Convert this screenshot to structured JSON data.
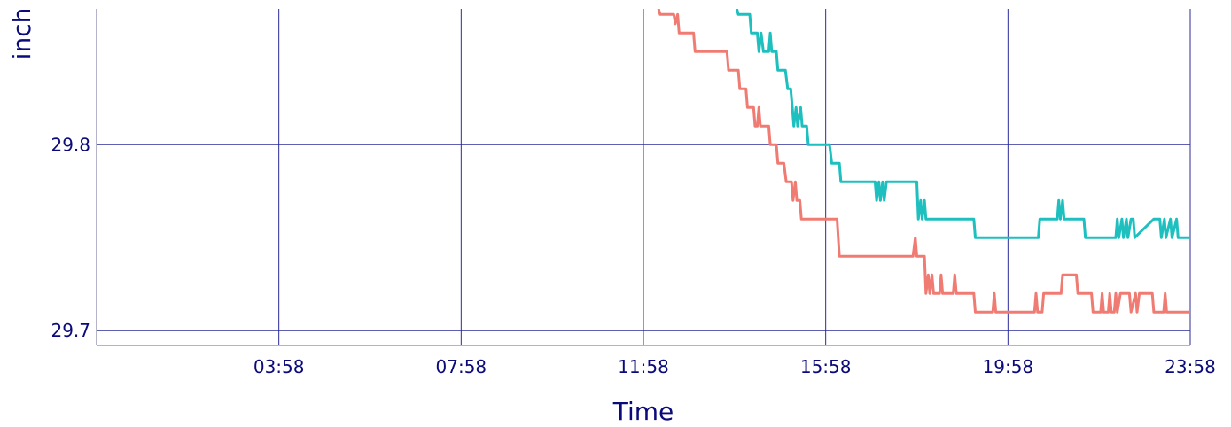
{
  "chart_data": {
    "type": "line",
    "title": "",
    "xlabel": "Time",
    "ylabel": "inch",
    "x_tick_labels": [
      "03:58",
      "07:58",
      "11:58",
      "15:58",
      "19:58",
      "23:58"
    ],
    "y_tick_labels": [
      "29.7",
      "29.8"
    ],
    "xlim": [
      "23:58",
      "23:58"
    ],
    "ylim": [
      29.692,
      29.873
    ],
    "grid": true,
    "legend": "none",
    "series": [
      {
        "color": "#f07b72",
        "points": [
          [
            "12:18",
            29.873
          ],
          [
            "12:20",
            29.87
          ],
          [
            "12:38",
            29.87
          ],
          [
            "12:40",
            29.865
          ],
          [
            "12:43",
            29.87
          ],
          [
            "12:45",
            29.86
          ],
          [
            "13:04",
            29.86
          ],
          [
            "13:06",
            29.85
          ],
          [
            "13:48",
            29.85
          ],
          [
            "13:50",
            29.84
          ],
          [
            "14:03",
            29.84
          ],
          [
            "14:05",
            29.83
          ],
          [
            "14:13",
            29.83
          ],
          [
            "14:15",
            29.82
          ],
          [
            "14:23",
            29.82
          ],
          [
            "14:25",
            29.81
          ],
          [
            "14:28",
            29.81
          ],
          [
            "14:30",
            29.82
          ],
          [
            "14:32",
            29.81
          ],
          [
            "14:43",
            29.81
          ],
          [
            "14:45",
            29.8
          ],
          [
            "14:53",
            29.8
          ],
          [
            "14:55",
            29.79
          ],
          [
            "15:03",
            29.79
          ],
          [
            "15:06",
            29.78
          ],
          [
            "15:13",
            29.78
          ],
          [
            "15:15",
            29.77
          ],
          [
            "15:18",
            29.78
          ],
          [
            "15:20",
            29.77
          ],
          [
            "15:24",
            29.77
          ],
          [
            "15:26",
            29.76
          ],
          [
            "15:58",
            29.76
          ],
          [
            "16:13",
            29.76
          ],
          [
            "16:16",
            29.74
          ],
          [
            "17:53",
            29.74
          ],
          [
            "17:56",
            29.75
          ],
          [
            "17:58",
            29.74
          ],
          [
            "18:08",
            29.74
          ],
          [
            "18:10",
            29.72
          ],
          [
            "18:13",
            29.73
          ],
          [
            "18:15",
            29.72
          ],
          [
            "18:18",
            29.73
          ],
          [
            "18:20",
            29.72
          ],
          [
            "18:28",
            29.72
          ],
          [
            "18:30",
            29.73
          ],
          [
            "18:32",
            29.72
          ],
          [
            "18:46",
            29.72
          ],
          [
            "18:48",
            29.73
          ],
          [
            "18:50",
            29.72
          ],
          [
            "19:13",
            29.72
          ],
          [
            "19:15",
            29.71
          ],
          [
            "19:38",
            29.71
          ],
          [
            "19:40",
            29.72
          ],
          [
            "19:42",
            29.71
          ],
          [
            "20:33",
            29.71
          ],
          [
            "20:35",
            29.72
          ],
          [
            "20:37",
            29.71
          ],
          [
            "20:43",
            29.71
          ],
          [
            "20:45",
            29.72
          ],
          [
            "21:08",
            29.72
          ],
          [
            "21:10",
            29.73
          ],
          [
            "21:28",
            29.73
          ],
          [
            "21:30",
            29.72
          ],
          [
            "21:48",
            29.72
          ],
          [
            "21:50",
            29.71
          ],
          [
            "22:00",
            29.71
          ],
          [
            "22:02",
            29.72
          ],
          [
            "22:04",
            29.71
          ],
          [
            "22:10",
            29.71
          ],
          [
            "22:12",
            29.72
          ],
          [
            "22:14",
            29.71
          ],
          [
            "22:18",
            29.71
          ],
          [
            "22:20",
            29.72
          ],
          [
            "22:22",
            29.71
          ],
          [
            "22:26",
            29.72
          ],
          [
            "22:38",
            29.72
          ],
          [
            "22:40",
            29.71
          ],
          [
            "22:46",
            29.72
          ],
          [
            "22:48",
            29.71
          ],
          [
            "22:51",
            29.72
          ],
          [
            "23:08",
            29.72
          ],
          [
            "23:10",
            29.71
          ],
          [
            "23:23",
            29.71
          ],
          [
            "23:25",
            29.72
          ],
          [
            "23:27",
            29.71
          ],
          [
            "23:58",
            29.71
          ]
        ]
      },
      {
        "color": "#1dbfbf",
        "points": [
          [
            "14:01",
            29.873
          ],
          [
            "14:03",
            29.87
          ],
          [
            "14:18",
            29.87
          ],
          [
            "14:20",
            29.86
          ],
          [
            "14:28",
            29.86
          ],
          [
            "14:30",
            29.85
          ],
          [
            "14:33",
            29.86
          ],
          [
            "14:36",
            29.85
          ],
          [
            "14:43",
            29.85
          ],
          [
            "14:45",
            29.86
          ],
          [
            "14:47",
            29.85
          ],
          [
            "14:53",
            29.85
          ],
          [
            "14:55",
            29.84
          ],
          [
            "15:05",
            29.84
          ],
          [
            "15:08",
            29.83
          ],
          [
            "15:12",
            29.83
          ],
          [
            "15:14",
            29.82
          ],
          [
            "15:16",
            29.81
          ],
          [
            "15:19",
            29.82
          ],
          [
            "15:21",
            29.81
          ],
          [
            "15:25",
            29.82
          ],
          [
            "15:27",
            29.81
          ],
          [
            "15:33",
            29.81
          ],
          [
            "15:35",
            29.8
          ],
          [
            "16:03",
            29.8
          ],
          [
            "16:06",
            29.79
          ],
          [
            "16:16",
            29.79
          ],
          [
            "16:18",
            29.78
          ],
          [
            "17:03",
            29.78
          ],
          [
            "17:05",
            29.77
          ],
          [
            "17:08",
            29.78
          ],
          [
            "17:10",
            29.77
          ],
          [
            "17:13",
            29.78
          ],
          [
            "17:15",
            29.77
          ],
          [
            "17:18",
            29.78
          ],
          [
            "17:58",
            29.78
          ],
          [
            "18:00",
            29.76
          ],
          [
            "18:03",
            29.77
          ],
          [
            "18:05",
            29.76
          ],
          [
            "18:08",
            29.77
          ],
          [
            "18:10",
            29.76
          ],
          [
            "19:13",
            29.76
          ],
          [
            "19:15",
            29.75
          ],
          [
            "20:38",
            29.75
          ],
          [
            "20:40",
            29.76
          ],
          [
            "21:03",
            29.76
          ],
          [
            "21:05",
            29.77
          ],
          [
            "21:07",
            29.76
          ],
          [
            "21:10",
            29.77
          ],
          [
            "21:12",
            29.76
          ],
          [
            "21:38",
            29.76
          ],
          [
            "21:40",
            29.75
          ],
          [
            "22:20",
            29.75
          ],
          [
            "22:22",
            29.76
          ],
          [
            "22:24",
            29.75
          ],
          [
            "22:28",
            29.76
          ],
          [
            "22:30",
            29.75
          ],
          [
            "22:34",
            29.76
          ],
          [
            "22:36",
            29.75
          ],
          [
            "22:40",
            29.76
          ],
          [
            "22:43",
            29.76
          ],
          [
            "22:45",
            29.75
          ],
          [
            "23:10",
            29.76
          ],
          [
            "23:18",
            29.76
          ],
          [
            "23:20",
            29.75
          ],
          [
            "23:24",
            29.76
          ],
          [
            "23:26",
            29.75
          ],
          [
            "23:32",
            29.76
          ],
          [
            "23:34",
            29.75
          ],
          [
            "23:40",
            29.76
          ],
          [
            "23:42",
            29.75
          ],
          [
            "23:58",
            29.75
          ]
        ]
      }
    ]
  }
}
